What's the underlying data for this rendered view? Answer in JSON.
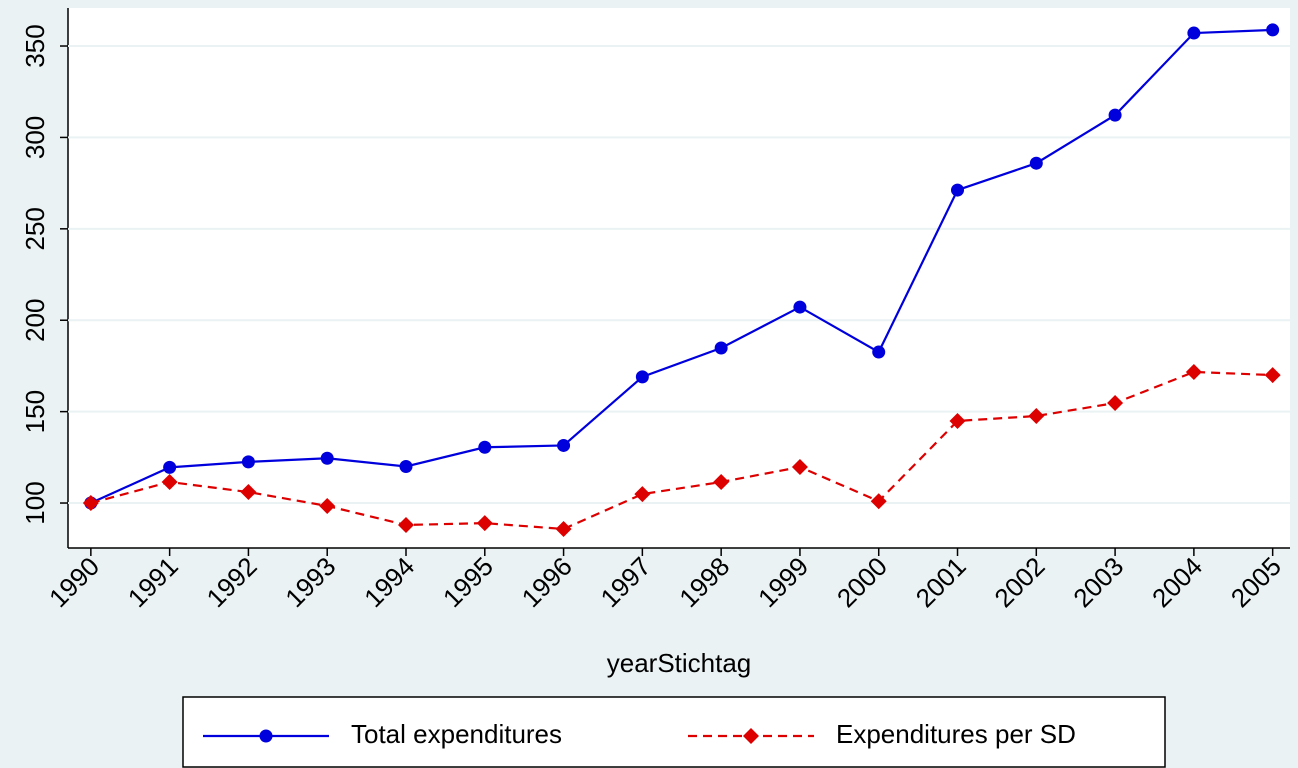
{
  "chart_data": {
    "type": "line",
    "x_label": "yearStichtag",
    "x": [
      1990,
      1991,
      1992,
      1993,
      1994,
      1995,
      1996,
      1997,
      1998,
      1999,
      2000,
      2001,
      2002,
      2003,
      2004,
      2005
    ],
    "series": [
      {
        "name": "Total expenditures",
        "color": "#0000dd",
        "marker": "circle",
        "dash": false,
        "values": [
          100,
          119.5,
          122.5,
          124.5,
          120,
          130.5,
          131.5,
          169,
          184.8,
          207.2,
          182.6,
          271.2,
          285.9,
          312.2,
          357.1,
          358.8
        ]
      },
      {
        "name": "Expenditures per SD",
        "color": "#dd0000",
        "marker": "diamond",
        "dash": true,
        "values": [
          100,
          111.5,
          106,
          98.4,
          88,
          89,
          85.8,
          104.9,
          111.5,
          119.7,
          101,
          144.9,
          147.6,
          154.7,
          171.7,
          170
        ]
      }
    ],
    "xlim": [
      1989.71,
      2005.22
    ],
    "xticks": [
      1990,
      1991,
      1992,
      1993,
      1994,
      1995,
      1996,
      1997,
      1998,
      1999,
      2000,
      2001,
      2002,
      2003,
      2004,
      2005
    ],
    "ylim": [
      75.4,
      370.8
    ],
    "yticks": [
      100,
      150,
      200,
      250,
      300,
      350
    ],
    "grid": true,
    "legend": "bottom"
  }
}
